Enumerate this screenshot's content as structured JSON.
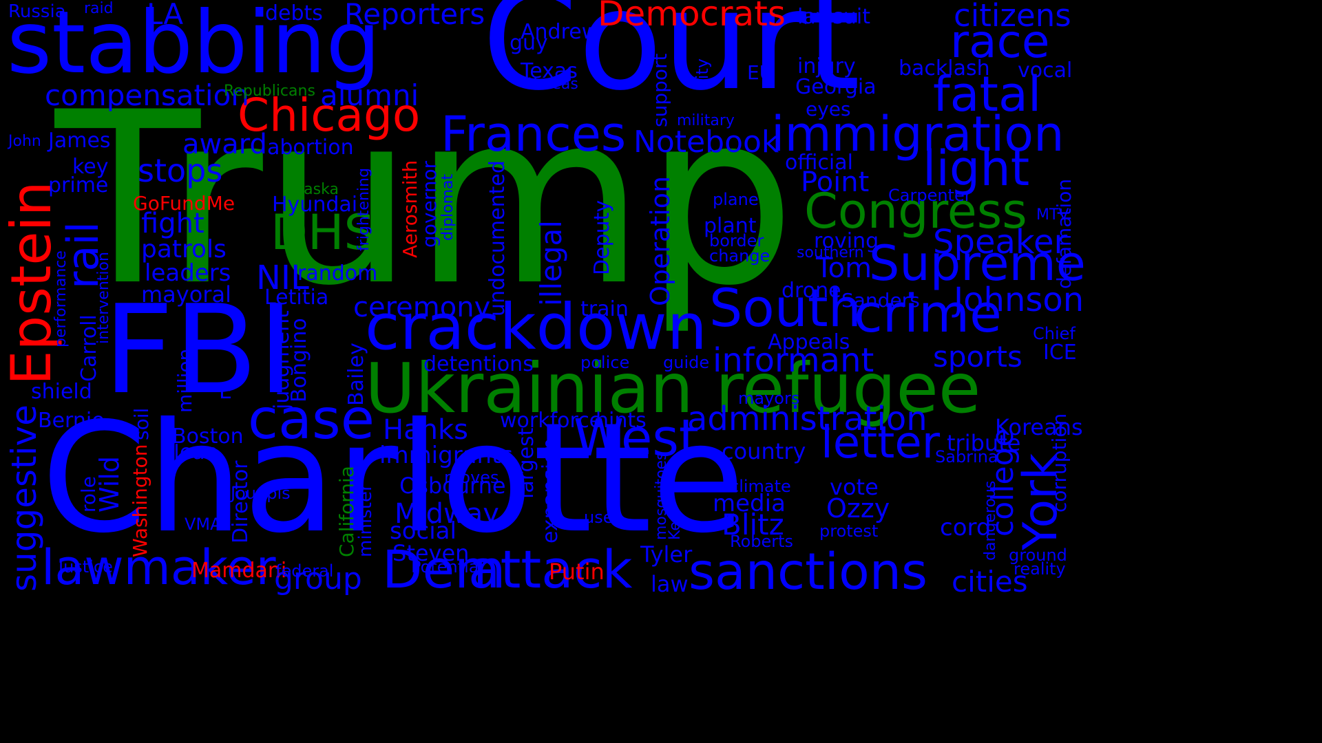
{
  "colors": {
    "background": "#000000",
    "blue": "#0000ff",
    "green": "#008000",
    "red": "#ff0000"
  },
  "words": [
    {
      "id": "trump",
      "text": "Trump",
      "color": "green"
    },
    {
      "id": "charlotte",
      "text": "Charlotte",
      "color": "blue"
    },
    {
      "id": "court",
      "text": "Court",
      "color": "blue"
    },
    {
      "id": "stabbing",
      "text": "stabbing",
      "color": "blue"
    },
    {
      "id": "fbi",
      "text": "FBI",
      "color": "blue"
    },
    {
      "id": "ukrainian-refugee",
      "text": "Ukrainian refugee",
      "color": "green"
    },
    {
      "id": "crackdown",
      "text": "crackdown",
      "color": "blue"
    },
    {
      "id": "dem",
      "text": "Dem",
      "color": "blue"
    },
    {
      "id": "attack",
      "text": "attack",
      "color": "blue"
    },
    {
      "id": "sanctions",
      "text": "sanctions",
      "color": "blue"
    },
    {
      "id": "south",
      "text": "South",
      "color": "blue"
    },
    {
      "id": "crime",
      "text": "crime",
      "color": "blue"
    },
    {
      "id": "immigration",
      "text": "immigration",
      "color": "blue"
    },
    {
      "id": "frances",
      "text": "Frances",
      "color": "blue"
    },
    {
      "id": "congress",
      "text": "Congress",
      "color": "green"
    },
    {
      "id": "supreme",
      "text": "Supreme",
      "color": "blue"
    },
    {
      "id": "case",
      "text": "case",
      "color": "blue"
    },
    {
      "id": "west",
      "text": "West",
      "color": "blue"
    },
    {
      "id": "lawmaker",
      "text": "lawmaker",
      "color": "blue"
    },
    {
      "id": "chicago",
      "text": "Chicago",
      "color": "red"
    },
    {
      "id": "epstein",
      "text": "Epstein",
      "color": "red"
    },
    {
      "id": "democrats",
      "text": "Democrats",
      "color": "red"
    },
    {
      "id": "fatal",
      "text": "fatal",
      "color": "blue"
    },
    {
      "id": "race",
      "text": "race",
      "color": "blue"
    },
    {
      "id": "light",
      "text": "light",
      "color": "blue"
    },
    {
      "id": "york",
      "text": "York",
      "color": "blue"
    },
    {
      "id": "letter",
      "text": "letter",
      "color": "blue"
    },
    {
      "id": "rail",
      "text": "rail",
      "color": "blue"
    },
    {
      "id": "dhs",
      "text": "DHS",
      "color": "green"
    },
    {
      "id": "administration",
      "text": "administration",
      "color": "blue"
    },
    {
      "id": "informant",
      "text": "informant",
      "color": "blue"
    },
    {
      "id": "johnson",
      "text": "Johnson",
      "color": "blue"
    },
    {
      "id": "speaker",
      "text": "Speaker",
      "color": "blue"
    },
    {
      "id": "citizens",
      "text": "citizens",
      "color": "blue"
    },
    {
      "id": "notebook",
      "text": "Notebook",
      "color": "blue"
    },
    {
      "id": "compensation",
      "text": "compensation",
      "color": "blue"
    },
    {
      "id": "reporters",
      "text": "Reporters",
      "color": "blue"
    },
    {
      "id": "alumni",
      "text": "alumni",
      "color": "blue"
    },
    {
      "id": "stops",
      "text": "stops",
      "color": "blue"
    },
    {
      "id": "award",
      "text": "award",
      "color": "blue"
    },
    {
      "id": "fight",
      "text": "fight",
      "color": "blue"
    },
    {
      "id": "patrols",
      "text": "patrols",
      "color": "blue"
    },
    {
      "id": "leaders",
      "text": "leaders",
      "color": "blue"
    },
    {
      "id": "mayoral",
      "text": "mayoral",
      "color": "blue"
    },
    {
      "id": "ceremony",
      "text": "ceremony",
      "color": "blue"
    },
    {
      "id": "sports",
      "text": "sports",
      "color": "blue"
    },
    {
      "id": "cities",
      "text": "cities",
      "color": "blue"
    },
    {
      "id": "hanks",
      "text": "Hanks",
      "color": "blue"
    },
    {
      "id": "midway",
      "text": "Midway",
      "color": "blue"
    },
    {
      "id": "blitz",
      "text": "Blitz",
      "color": "blue"
    },
    {
      "id": "tom",
      "text": "Tom",
      "color": "blue"
    },
    {
      "id": "point",
      "text": "Point",
      "color": "blue"
    },
    {
      "id": "nil",
      "text": "NIL",
      "color": "blue"
    },
    {
      "id": "suggestive",
      "text": "suggestive",
      "color": "blue"
    },
    {
      "id": "operation",
      "text": "Operation",
      "color": "blue"
    },
    {
      "id": "illegal",
      "text": "illegal",
      "color": "blue"
    },
    {
      "id": "college",
      "text": "college",
      "color": "blue"
    },
    {
      "id": "group",
      "text": "group",
      "color": "blue"
    },
    {
      "id": "immigrants",
      "text": "immigrants",
      "color": "blue"
    },
    {
      "id": "osbourne",
      "text": "Osbourne",
      "color": "blue"
    },
    {
      "id": "social",
      "text": "social",
      "color": "blue"
    },
    {
      "id": "steven",
      "text": "Steven",
      "color": "blue"
    },
    {
      "id": "ozzy",
      "text": "Ozzy",
      "color": "blue"
    },
    {
      "id": "media",
      "text": "media",
      "color": "blue"
    },
    {
      "id": "country",
      "text": "country",
      "color": "blue"
    },
    {
      "id": "koreans",
      "text": "Koreans",
      "color": "blue"
    },
    {
      "id": "tribute",
      "text": "tribute",
      "color": "blue"
    },
    {
      "id": "cord",
      "text": "cord",
      "color": "blue"
    },
    {
      "id": "vote",
      "text": "vote",
      "color": "blue"
    },
    {
      "id": "tyler",
      "text": "Tyler",
      "color": "blue"
    },
    {
      "id": "law",
      "text": "law",
      "color": "blue"
    },
    {
      "id": "putin",
      "text": "Putin",
      "color": "red"
    },
    {
      "id": "mamdani",
      "text": "Mamdani",
      "color": "red"
    },
    {
      "id": "gofundme",
      "text": "GoFundMe",
      "color": "red"
    },
    {
      "id": "aerosmith",
      "text": "Aerosmith",
      "color": "red"
    },
    {
      "id": "washington",
      "text": "Washington",
      "color": "red"
    },
    {
      "id": "california",
      "text": "California",
      "color": "green"
    },
    {
      "id": "alaska",
      "text": "Alaska",
      "color": "green"
    },
    {
      "id": "republicans",
      "text": "Republicans",
      "color": "green"
    },
    {
      "id": "russia",
      "text": "Russia",
      "color": "blue"
    },
    {
      "id": "raid",
      "text": "raid",
      "color": "blue"
    },
    {
      "id": "la",
      "text": "LA",
      "color": "blue"
    },
    {
      "id": "debts",
      "text": "debts",
      "color": "blue"
    },
    {
      "id": "lawsuit",
      "text": "lawsuit",
      "color": "blue"
    },
    {
      "id": "andrew",
      "text": "Andrew",
      "color": "blue"
    },
    {
      "id": "guy",
      "text": "guy",
      "color": "blue"
    },
    {
      "id": "texas",
      "text": "Texas",
      "color": "blue"
    },
    {
      "id": "koreas",
      "text": "Koreas",
      "color": "blue"
    },
    {
      "id": "support",
      "text": "support",
      "color": "blue"
    },
    {
      "id": "city",
      "text": "City",
      "color": "blue"
    },
    {
      "id": "eu",
      "text": "EU",
      "color": "blue"
    },
    {
      "id": "injury",
      "text": "injury",
      "color": "blue"
    },
    {
      "id": "georgia",
      "text": "Georgia",
      "color": "blue"
    },
    {
      "id": "backlash",
      "text": "backlash",
      "color": "blue"
    },
    {
      "id": "vocal",
      "text": "vocal",
      "color": "blue"
    },
    {
      "id": "eyes",
      "text": "eyes",
      "color": "blue"
    },
    {
      "id": "military",
      "text": "military",
      "color": "blue"
    },
    {
      "id": "john",
      "text": "John",
      "color": "blue"
    },
    {
      "id": "james",
      "text": "James",
      "color": "blue"
    },
    {
      "id": "abortion",
      "text": "abortion",
      "color": "blue"
    },
    {
      "id": "key",
      "text": "key",
      "color": "blue"
    },
    {
      "id": "prime",
      "text": "prime",
      "color": "blue"
    },
    {
      "id": "official",
      "text": "official",
      "color": "blue"
    },
    {
      "id": "frightening",
      "text": "frightening",
      "color": "blue"
    },
    {
      "id": "governor",
      "text": "governor",
      "color": "blue"
    },
    {
      "id": "diplomat",
      "text": "diplomat",
      "color": "blue"
    },
    {
      "id": "hyundai",
      "text": "Hyundai",
      "color": "blue"
    },
    {
      "id": "undocumented",
      "text": "undocumented",
      "color": "blue"
    },
    {
      "id": "deputy",
      "text": "Deputy",
      "color": "blue"
    },
    {
      "id": "plane",
      "text": "plane",
      "color": "blue"
    },
    {
      "id": "plant",
      "text": "plant",
      "color": "blue"
    },
    {
      "id": "border",
      "text": "border",
      "color": "blue"
    },
    {
      "id": "change",
      "text": "change",
      "color": "blue"
    },
    {
      "id": "roving",
      "text": "roving",
      "color": "blue"
    },
    {
      "id": "southern",
      "text": "southern",
      "color": "blue"
    },
    {
      "id": "carpenter",
      "text": "Carpenter",
      "color": "blue"
    },
    {
      "id": "mtv",
      "text": "MTV",
      "color": "blue"
    },
    {
      "id": "defamation",
      "text": "defamation",
      "color": "blue"
    },
    {
      "id": "random",
      "text": "random",
      "color": "blue"
    },
    {
      "id": "letitia",
      "text": "Letitia",
      "color": "blue"
    },
    {
      "id": "performance",
      "text": "performance",
      "color": "blue"
    },
    {
      "id": "intervention",
      "text": "intervention",
      "color": "blue"
    },
    {
      "id": "carroll",
      "text": "Carroll",
      "color": "blue"
    },
    {
      "id": "drone",
      "text": "drone",
      "color": "blue"
    },
    {
      "id": "sanders",
      "text": "Sanders",
      "color": "blue"
    },
    {
      "id": "train",
      "text": "train",
      "color": "blue"
    },
    {
      "id": "appeals",
      "text": "Appeals",
      "color": "blue"
    },
    {
      "id": "chief",
      "text": "Chief",
      "color": "blue"
    },
    {
      "id": "ice",
      "text": "ICE",
      "color": "blue"
    },
    {
      "id": "shield",
      "text": "shield",
      "color": "blue"
    },
    {
      "id": "bernie",
      "text": "Bernie",
      "color": "blue"
    },
    {
      "id": "judgment",
      "text": "judgment",
      "color": "blue"
    },
    {
      "id": "bongino",
      "text": "Bongino",
      "color": "blue"
    },
    {
      "id": "bailey",
      "text": "Bailey",
      "color": "blue"
    },
    {
      "id": "million",
      "text": "million",
      "color": "blue"
    },
    {
      "id": "e",
      "text": "E",
      "color": "blue"
    },
    {
      "id": "detentions",
      "text": "detentions",
      "color": "blue"
    },
    {
      "id": "police",
      "text": "police",
      "color": "blue"
    },
    {
      "id": "guide",
      "text": "guide",
      "color": "blue"
    },
    {
      "id": "mayors",
      "text": "mayors",
      "color": "blue"
    },
    {
      "id": "soil",
      "text": "soil",
      "color": "blue"
    },
    {
      "id": "boston",
      "text": "Boston",
      "color": "blue"
    },
    {
      "id": "jean",
      "text": "Jean",
      "color": "blue"
    },
    {
      "id": "workforce",
      "text": "workforce",
      "color": "blue"
    },
    {
      "id": "hints",
      "text": "hints",
      "color": "blue"
    },
    {
      "id": "sabrina",
      "text": "Sabrina",
      "color": "blue"
    },
    {
      "id": "corruption",
      "text": "corruption",
      "color": "blue"
    },
    {
      "id": "wild",
      "text": "Wild",
      "color": "blue"
    },
    {
      "id": "role",
      "text": "role",
      "color": "blue"
    },
    {
      "id": "jouppis",
      "text": "Jouppis",
      "color": "blue"
    },
    {
      "id": "director",
      "text": "Director",
      "color": "blue"
    },
    {
      "id": "vma",
      "text": "VMA",
      "color": "blue"
    },
    {
      "id": "minister",
      "text": "minister",
      "color": "blue"
    },
    {
      "id": "largest",
      "text": "largest",
      "color": "blue"
    },
    {
      "id": "expansion",
      "text": "expansion",
      "color": "blue"
    },
    {
      "id": "moves",
      "text": "moves",
      "color": "blue"
    },
    {
      "id": "use",
      "text": "use",
      "color": "blue"
    },
    {
      "id": "mosquitoes",
      "text": "mosquitoes",
      "color": "blue"
    },
    {
      "id": "ken",
      "text": "Ken",
      "color": "blue"
    },
    {
      "id": "climate",
      "text": "climate",
      "color": "blue"
    },
    {
      "id": "protest",
      "text": "protest",
      "color": "blue"
    },
    {
      "id": "roberts",
      "text": "Roberts",
      "color": "blue"
    },
    {
      "id": "dangerous",
      "text": "dangerous",
      "color": "blue"
    },
    {
      "id": "ground",
      "text": "ground",
      "color": "blue"
    },
    {
      "id": "reality",
      "text": "reality",
      "color": "blue"
    },
    {
      "id": "justice",
      "text": "Justice",
      "color": "blue"
    },
    {
      "id": "federal",
      "text": "federal",
      "color": "blue"
    },
    {
      "id": "potential",
      "text": "Potential",
      "color": "blue"
    }
  ]
}
